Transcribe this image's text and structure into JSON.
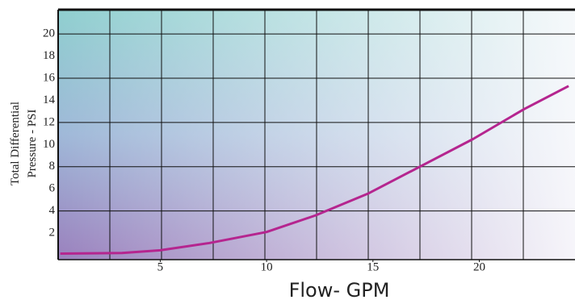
{
  "chart_data": {
    "type": "line",
    "x_label": "Flow- GPM",
    "y_label": [
      "Total Differential",
      "Pressure - PSI"
    ],
    "x": [
      0.3,
      3.2,
      5,
      7.3,
      10,
      12.3,
      14.8,
      17.2,
      19.7,
      22.1,
      24.2
    ],
    "series": [
      {
        "name": "Pressure",
        "color": "#b5258f",
        "values": [
          0.15,
          0.2,
          0.45,
          1.1,
          2.1,
          3.6,
          5.6,
          8.0,
          10.5,
          13.2,
          15.3
        ]
      }
    ],
    "xlim": [
      0.2,
      24.5
    ],
    "xticks": [
      5,
      10,
      15,
      20
    ],
    "ylim": [
      -0.4,
      22.2
    ],
    "yticks": [
      2,
      4,
      6,
      8,
      10,
      12,
      14,
      16,
      18,
      20
    ],
    "grid": true
  }
}
